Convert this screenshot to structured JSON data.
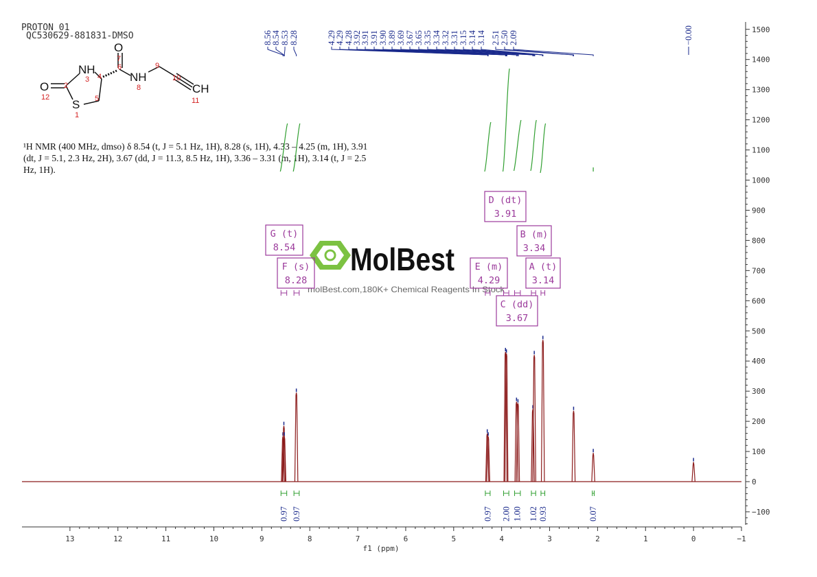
{
  "header": {
    "line1": "PROTON_01",
    "line2": "QC530629-881831-DMSO"
  },
  "description": {
    "line1": "¹H NMR (400 MHz, dmso) δ 8.54 (t, J = 5.1 Hz, 1H), 8.28 (s, 1H), 4.33 – 4.25 (m, 1H), 3.91",
    "line2": "(dt, J = 5.1, 2.3 Hz, 2H), 3.67 (dd, J = 11.3, 8.5 Hz, 1H), 3.36 – 3.31 (m, 1H), 3.14 (t, J = 2.5",
    "line3": "Hz, 1H)."
  },
  "molecule": {
    "atoms": [
      {
        "label": "O",
        "num": "7"
      },
      {
        "label": "NH",
        "num": "3"
      },
      {
        "label": "NH",
        "num": "8"
      },
      {
        "label": "O",
        "num": "12"
      },
      {
        "label": "S",
        "num": "1"
      },
      {
        "label": "CH",
        "num": "11"
      }
    ],
    "numbers": [
      "2",
      "4",
      "5",
      "6",
      "9",
      "10"
    ]
  },
  "watermark": {
    "brand": "MolBest",
    "tagline": "molBest.com,180K+ Chemical Reagents In Stock"
  },
  "colors": {
    "spectrum": "#8b1a1a",
    "integral": "#2e9e2e",
    "peak_label": "#1a2a8c",
    "multiplet_box": "#9b3a9b",
    "watermark_green": "#7cc242",
    "axis": "#333333"
  },
  "chart_data": {
    "type": "line",
    "title": "",
    "xlabel": "f1 (ppm)",
    "ylabel": "",
    "x_reversed": true,
    "xlim": [
      14,
      -1
    ],
    "ylim": [
      -150,
      1520
    ],
    "x_ticks": [
      "13",
      "12",
      "11",
      "10",
      "9",
      "8",
      "7",
      "6",
      "5",
      "4",
      "3",
      "2",
      "1",
      "0",
      "-1"
    ],
    "y_ticks": [
      "1500",
      "1400",
      "1300",
      "1200",
      "1100",
      "1000",
      "900",
      "800",
      "700",
      "600",
      "500",
      "400",
      "300",
      "200",
      "100",
      "0",
      "-100"
    ],
    "peaks": [
      {
        "ppm": 8.56,
        "height": 150
      },
      {
        "ppm": 8.54,
        "height": 185
      },
      {
        "ppm": 8.53,
        "height": 150
      },
      {
        "ppm": 8.28,
        "height": 295
      },
      {
        "ppm": 4.3,
        "height": 160
      },
      {
        "ppm": 4.28,
        "height": 150
      },
      {
        "ppm": 3.92,
        "height": 430
      },
      {
        "ppm": 3.9,
        "height": 425
      },
      {
        "ppm": 3.69,
        "height": 265
      },
      {
        "ppm": 3.66,
        "height": 260
      },
      {
        "ppm": 3.35,
        "height": 240
      },
      {
        "ppm": 3.32,
        "height": 420
      },
      {
        "ppm": 3.14,
        "height": 470
      },
      {
        "ppm": 2.5,
        "height": 235
      },
      {
        "ppm": 2.09,
        "height": 95
      },
      {
        "ppm": 0.0,
        "height": 65
      }
    ],
    "peak_labels": [
      "8.56",
      "8.54",
      "8.53",
      "8.28",
      "4.29",
      "4.29",
      "4.28",
      "3.92",
      "3.91",
      "3.91",
      "3.90",
      "3.89",
      "3.69",
      "3.67",
      "3.65",
      "3.35",
      "3.34",
      "3.32",
      "3.31",
      "3.15",
      "3.14",
      "3.14",
      "2.51",
      "2.50",
      "2.09",
      "-0.00"
    ],
    "integrals": [
      {
        "from": 8.6,
        "to": 8.48,
        "value": "0.97"
      },
      {
        "from": 8.33,
        "to": 8.22,
        "value": "0.97"
      },
      {
        "from": 4.34,
        "to": 4.24,
        "value": "0.97"
      },
      {
        "from": 3.96,
        "to": 3.85,
        "value": "2.00"
      },
      {
        "from": 3.73,
        "to": 3.61,
        "value": "1.00"
      },
      {
        "from": 3.38,
        "to": 3.29,
        "value": "1.02"
      },
      {
        "from": 3.18,
        "to": 3.1,
        "value": "0.93"
      },
      {
        "from": 2.11,
        "to": 2.07,
        "value": "0.07"
      }
    ],
    "multiplets": [
      {
        "id": "G",
        "type": "t",
        "ppm": "8.54"
      },
      {
        "id": "F",
        "type": "s",
        "ppm": "8.28"
      },
      {
        "id": "E",
        "type": "m",
        "ppm": "4.29"
      },
      {
        "id": "D",
        "type": "dt",
        "ppm": "3.91"
      },
      {
        "id": "C",
        "type": "dd",
        "ppm": "3.67"
      },
      {
        "id": "B",
        "type": "m",
        "ppm": "3.34"
      },
      {
        "id": "A",
        "type": "t",
        "ppm": "3.14"
      }
    ]
  }
}
